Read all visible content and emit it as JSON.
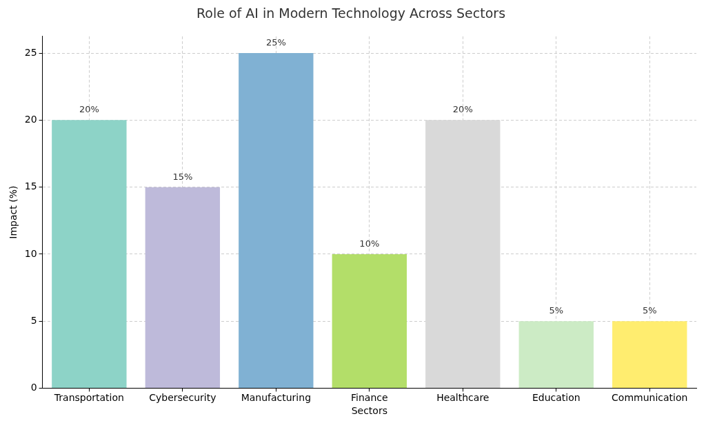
{
  "chart_data": {
    "type": "bar",
    "title": "Role of AI in Modern Technology Across Sectors",
    "x_label": "Sectors",
    "y_label": "Impact (%)",
    "categories": [
      "Transportation",
      "Cybersecurity",
      "Manufacturing",
      "Finance",
      "Healthcare",
      "Education",
      "Communication"
    ],
    "values": [
      20,
      15,
      25,
      10,
      20,
      5,
      5
    ],
    "value_labels": [
      "20%",
      "15%",
      "25%",
      "10%",
      "20%",
      "5%",
      "5%"
    ],
    "colors": [
      "#8dd3c7",
      "#bebada",
      "#80b1d3",
      "#b3de69",
      "#d9d9d9",
      "#ccebc5",
      "#ffed6f"
    ],
    "ylim": [
      0,
      26.25
    ],
    "yticks": [
      0,
      5,
      10,
      15,
      20,
      25
    ],
    "grid": true,
    "data_labels": true
  }
}
